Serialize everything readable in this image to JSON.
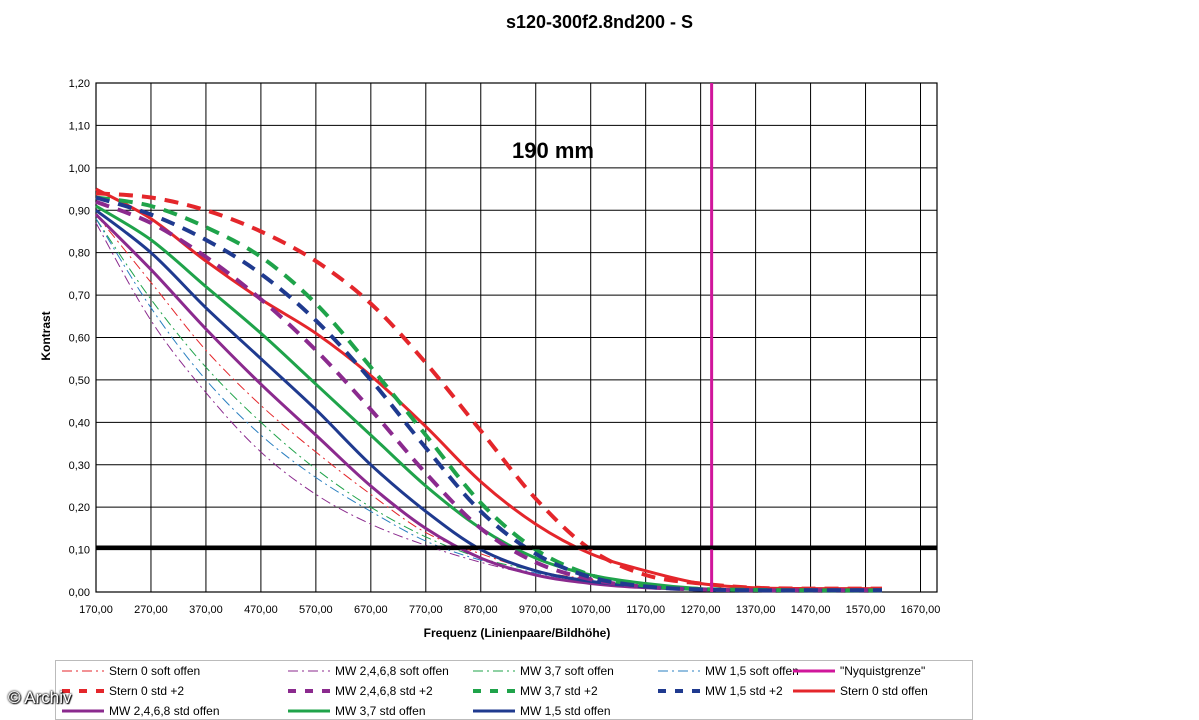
{
  "chart_data": {
    "type": "line",
    "title": "s120-300f2.8nd200 - S",
    "annotation": "190 mm",
    "xlabel": "Frequenz (Linienpaare/Bildhöhe)",
    "ylabel": "Kontrast",
    "xlim": [
      170,
      1700
    ],
    "ylim": [
      0,
      1.2
    ],
    "x_ticks": [
      "170,00",
      "270,00",
      "370,00",
      "470,00",
      "570,00",
      "670,00",
      "770,00",
      "870,00",
      "970,00",
      "1070,00",
      "1170,00",
      "1270,00",
      "1370,00",
      "1470,00",
      "1570,00",
      "1670,00"
    ],
    "y_ticks": [
      "0,00",
      "0,10",
      "0,20",
      "0,30",
      "0,40",
      "0,50",
      "0,60",
      "0,70",
      "0,80",
      "0,90",
      "1,00",
      "1,10",
      "1,20"
    ],
    "grid": true,
    "legend_position": "bottom",
    "reference_lines": [
      {
        "axis": "x",
        "value": 1290,
        "color": "#d0169b"
      },
      {
        "axis": "y",
        "value": 0.105,
        "color": "#000000"
      }
    ],
    "series": [
      {
        "name": "Stern 0 soft offen",
        "color": "#e4262b",
        "style": "dashdot",
        "width": 1,
        "x": [
          170,
          270,
          370,
          470,
          570,
          670,
          770,
          870,
          970,
          1070,
          1170,
          1270,
          1370,
          1470,
          1600
        ],
        "y": [
          0.89,
          0.73,
          0.57,
          0.44,
          0.33,
          0.23,
          0.14,
          0.09,
          0.05,
          0.03,
          0.015,
          0.008,
          0.005,
          0.005,
          0.005
        ]
      },
      {
        "name": "MW 2,4,6,8 soft offen",
        "color": "#8b2a8e",
        "style": "dashdot",
        "width": 1,
        "x": [
          170,
          270,
          370,
          470,
          570,
          670,
          770,
          870,
          970,
          1070,
          1170,
          1270,
          1370,
          1470,
          1600
        ],
        "y": [
          0.87,
          0.64,
          0.47,
          0.33,
          0.23,
          0.16,
          0.11,
          0.07,
          0.04,
          0.02,
          0.01,
          0.005,
          0.004,
          0.004,
          0.004
        ]
      },
      {
        "name": "MW 3,7 soft offen",
        "color": "#1fa34a",
        "style": "dashdot",
        "width": 1,
        "x": [
          170,
          270,
          370,
          470,
          570,
          670,
          770,
          870,
          970,
          1070,
          1170,
          1270,
          1370,
          1470,
          1600
        ],
        "y": [
          0.88,
          0.69,
          0.53,
          0.4,
          0.29,
          0.2,
          0.13,
          0.08,
          0.05,
          0.025,
          0.012,
          0.006,
          0.004,
          0.004,
          0.004
        ]
      },
      {
        "name": "MW 1,5 soft offen",
        "color": "#2a7fc0",
        "style": "dashdot",
        "width": 1,
        "x": [
          170,
          270,
          370,
          470,
          570,
          670,
          770,
          870,
          970,
          1070,
          1170,
          1270,
          1370,
          1470,
          1600
        ],
        "y": [
          0.88,
          0.67,
          0.5,
          0.37,
          0.27,
          0.19,
          0.12,
          0.075,
          0.045,
          0.022,
          0.011,
          0.006,
          0.004,
          0.004,
          0.004
        ]
      },
      {
        "name": "\"Nyquistgrenze\"",
        "color": "#d0169b",
        "style": "solid",
        "width": 3,
        "x": [],
        "y": []
      },
      {
        "name": "Stern 0 std +2",
        "color": "#e4262b",
        "style": "dash",
        "width": 4,
        "x": [
          170,
          270,
          370,
          470,
          570,
          670,
          770,
          870,
          970,
          1070,
          1170,
          1270,
          1370,
          1470,
          1600
        ],
        "y": [
          0.94,
          0.93,
          0.9,
          0.85,
          0.78,
          0.68,
          0.54,
          0.38,
          0.22,
          0.1,
          0.04,
          0.02,
          0.01,
          0.008,
          0.008
        ]
      },
      {
        "name": "MW 2,4,6,8 std +2",
        "color": "#8b2a8e",
        "style": "dash",
        "width": 4,
        "x": [
          170,
          270,
          370,
          470,
          570,
          670,
          770,
          870,
          970,
          1070,
          1170,
          1270,
          1370,
          1470,
          1600
        ],
        "y": [
          0.92,
          0.87,
          0.79,
          0.69,
          0.57,
          0.43,
          0.28,
          0.15,
          0.07,
          0.03,
          0.012,
          0.006,
          0.004,
          0.004,
          0.004
        ]
      },
      {
        "name": "MW 3,7 std +2",
        "color": "#1fa34a",
        "style": "dash",
        "width": 4,
        "x": [
          170,
          270,
          370,
          470,
          570,
          670,
          770,
          870,
          970,
          1070,
          1170,
          1270,
          1370,
          1470,
          1600
        ],
        "y": [
          0.93,
          0.91,
          0.86,
          0.79,
          0.68,
          0.53,
          0.37,
          0.21,
          0.1,
          0.04,
          0.015,
          0.007,
          0.005,
          0.004,
          0.004
        ]
      },
      {
        "name": "MW 1,5 std +2",
        "color": "#1f3a8f",
        "style": "dash",
        "width": 4,
        "x": [
          170,
          270,
          370,
          470,
          570,
          670,
          770,
          870,
          970,
          1070,
          1170,
          1270,
          1370,
          1470,
          1600
        ],
        "y": [
          0.93,
          0.89,
          0.83,
          0.75,
          0.64,
          0.5,
          0.34,
          0.19,
          0.09,
          0.035,
          0.013,
          0.006,
          0.004,
          0.004,
          0.004
        ]
      },
      {
        "name": "Stern 0 std offen",
        "color": "#e4262b",
        "style": "solid",
        "width": 3,
        "x": [
          170,
          270,
          370,
          470,
          570,
          670,
          770,
          870,
          970,
          1070,
          1170,
          1270,
          1370,
          1470,
          1600
        ],
        "y": [
          0.95,
          0.88,
          0.78,
          0.69,
          0.61,
          0.51,
          0.39,
          0.26,
          0.16,
          0.09,
          0.05,
          0.02,
          0.01,
          0.008,
          0.008
        ]
      },
      {
        "name": "MW 2,4,6,8 std offen",
        "color": "#8b2a8e",
        "style": "solid",
        "width": 3,
        "x": [
          170,
          270,
          370,
          470,
          570,
          670,
          770,
          870,
          970,
          1070,
          1170,
          1270,
          1370,
          1470,
          1600
        ],
        "y": [
          0.89,
          0.76,
          0.62,
          0.49,
          0.37,
          0.25,
          0.15,
          0.08,
          0.04,
          0.02,
          0.01,
          0.006,
          0.004,
          0.004,
          0.004
        ]
      },
      {
        "name": "MW 3,7 std offen",
        "color": "#1fa34a",
        "style": "solid",
        "width": 3,
        "x": [
          170,
          270,
          370,
          470,
          570,
          670,
          770,
          870,
          970,
          1070,
          1170,
          1270,
          1370,
          1470,
          1600
        ],
        "y": [
          0.91,
          0.83,
          0.72,
          0.61,
          0.49,
          0.37,
          0.25,
          0.15,
          0.08,
          0.04,
          0.02,
          0.008,
          0.005,
          0.004,
          0.004
        ]
      },
      {
        "name": "MW 1,5 std offen",
        "color": "#1f3a8f",
        "style": "solid",
        "width": 3,
        "x": [
          170,
          270,
          370,
          470,
          570,
          670,
          770,
          870,
          970,
          1070,
          1170,
          1270,
          1370,
          1470,
          1600
        ],
        "y": [
          0.9,
          0.8,
          0.67,
          0.55,
          0.43,
          0.3,
          0.19,
          0.1,
          0.05,
          0.025,
          0.012,
          0.006,
          0.004,
          0.004,
          0.004
        ]
      }
    ]
  },
  "watermark": "© Archiv"
}
